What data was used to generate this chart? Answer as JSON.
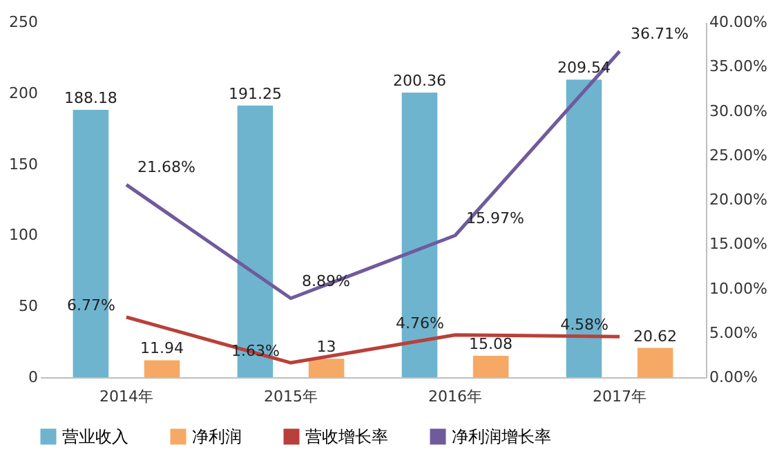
{
  "chart_data": {
    "type": "bar",
    "categories": [
      "2014年",
      "2015年",
      "2016年",
      "2017年"
    ],
    "series": [
      {
        "name": "营业收入",
        "color": "#6eb4cf",
        "values": [
          188.18,
          191.25,
          200.36,
          209.54
        ],
        "value_labels": [
          "188.18",
          "191.25",
          "200.36",
          "209.54"
        ]
      },
      {
        "name": "净利润",
        "color": "#f6a964",
        "values": [
          11.94,
          13,
          15.08,
          20.62
        ],
        "value_labels": [
          "11.94",
          "13",
          "15.08",
          "20.62"
        ]
      },
      {
        "name": "营收增长率",
        "type": "line",
        "axis": "y2",
        "color": "#b9403a",
        "values": [
          6.77,
          1.63,
          4.76,
          4.58
        ],
        "value_labels": [
          "6.77%",
          "1.63%",
          "4.76%",
          "4.58%"
        ]
      },
      {
        "name": "净利润增长率",
        "type": "line",
        "axis": "y2",
        "color": "#6f5b9c",
        "values": [
          21.68,
          8.89,
          15.97,
          36.71
        ],
        "value_labels": [
          "21.68%",
          "8.89%",
          "15.97%",
          "36.71%"
        ]
      }
    ],
    "ylim": [
      0,
      250
    ],
    "yticks": [
      0,
      50,
      100,
      150,
      200,
      250
    ],
    "y2lim": [
      0,
      40
    ],
    "y2ticks": [
      {
        "value": 0,
        "label": "0.00%"
      },
      {
        "value": 5,
        "label": "5.00%"
      },
      {
        "value": 10,
        "label": "10.00%"
      },
      {
        "value": 15,
        "label": "15.00%"
      },
      {
        "value": 20,
        "label": "20.00%"
      },
      {
        "value": 25,
        "label": "25.00%"
      },
      {
        "value": 30,
        "label": "30.00%"
      },
      {
        "value": 35,
        "label": "35.00%"
      },
      {
        "value": 40,
        "label": "40.00%"
      }
    ],
    "grid": false,
    "legend": "bottom",
    "marker": "none",
    "line_style": "solid"
  }
}
